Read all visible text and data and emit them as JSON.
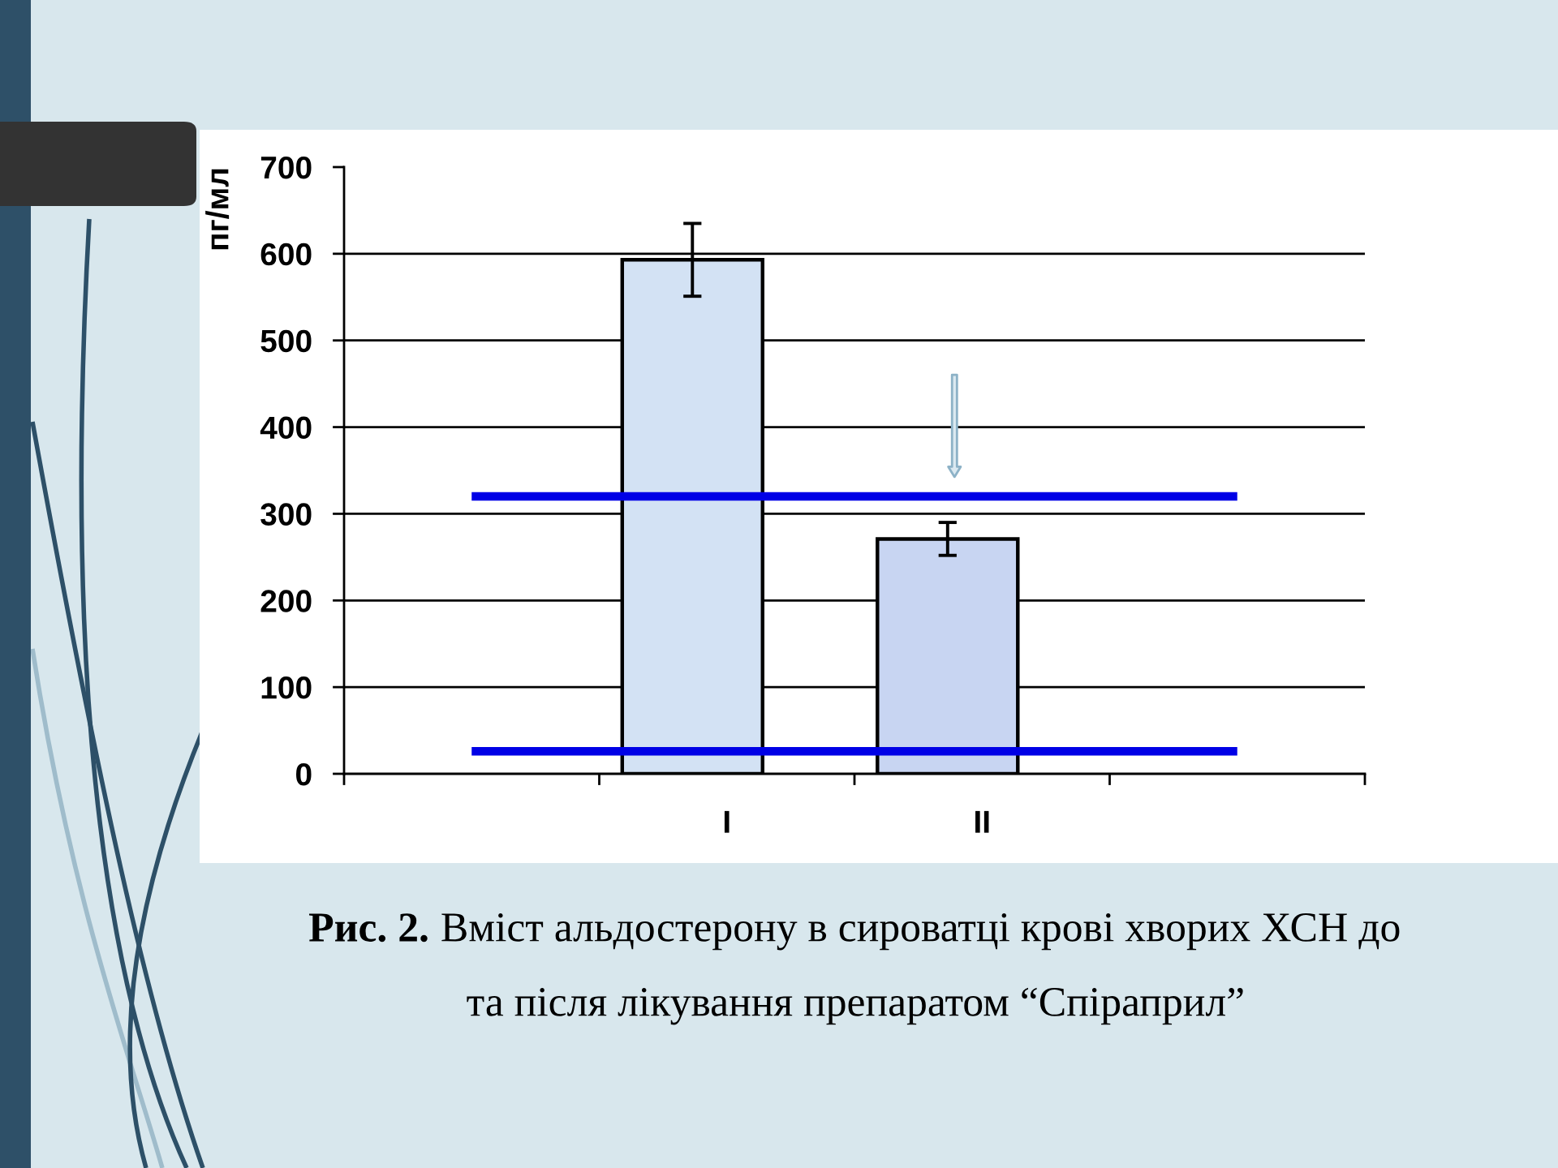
{
  "chart_data": {
    "type": "bar",
    "categories": [
      null,
      "I",
      "II",
      null
    ],
    "ylabel": "пг/мл",
    "ylim": [
      0,
      700
    ],
    "yticks": [
      0,
      100,
      200,
      300,
      400,
      500,
      600,
      700
    ],
    "grid": "y",
    "series": [
      {
        "colors": [
          null,
          "#d3e2f4",
          "#c8d5f2",
          null
        ],
        "values": [
          null,
          593,
          271,
          null
        ],
        "errors": [
          null,
          42,
          19,
          null
        ]
      },
      {
        "type": "line",
        "color": "#0000e6",
        "values": [
          320,
          320,
          320,
          320
        ]
      },
      {
        "type": "line",
        "color": "#0000e6",
        "values": [
          26,
          26,
          26,
          26
        ]
      }
    ],
    "annotations": [
      "Рис. 2.",
      "Вміст альдостерону в сироватці крові хворих ХСН до та після лікування препаратом “Спіраприл”"
    ]
  }
}
